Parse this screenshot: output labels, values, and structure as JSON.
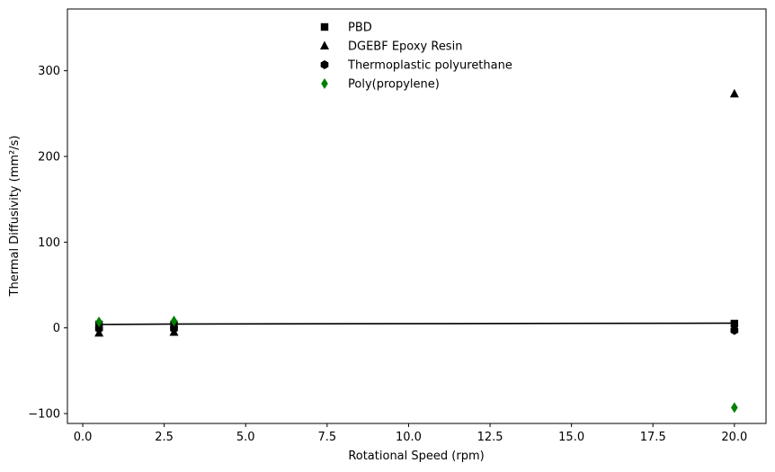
{
  "chart_data": {
    "type": "scatter",
    "title": "",
    "xlabel": "Rotational Speed (rpm)",
    "ylabel": "Thermal Diffusivity (mm²/s)",
    "xlim": [
      -0.47,
      20.97
    ],
    "ylim": [
      -111.5,
      372
    ],
    "x_ticks": [
      0.0,
      2.5,
      5.0,
      7.5,
      10.0,
      12.5,
      15.0,
      17.5,
      20.0
    ],
    "x_tick_labels": [
      "0.0",
      "2.5",
      "5.0",
      "7.5",
      "10.0",
      "12.5",
      "15.0",
      "17.5",
      "20.0"
    ],
    "y_ticks": [
      -100,
      0,
      100,
      200,
      300
    ],
    "y_tick_labels": [
      "−100",
      "0",
      "100",
      "200",
      "300"
    ],
    "grid": false,
    "legend_position": "top-center",
    "series": [
      {
        "name": "PBD",
        "marker": "square",
        "color": "#000000",
        "x": [
          0.5,
          2.8,
          20.0
        ],
        "y": [
          4,
          4,
          5
        ]
      },
      {
        "name": "DGEBF Epoxy Resin",
        "marker": "triangle",
        "color": "#000000",
        "x": [
          0.5,
          2.8,
          20.0
        ],
        "y": [
          -6,
          -5,
          273
        ]
      },
      {
        "name": "Thermoplastic polyurethane",
        "marker": "hexagon",
        "color": "#000000",
        "x": [
          0.5,
          2.8,
          20.0
        ],
        "y": [
          -1,
          -1,
          -3
        ]
      },
      {
        "name": "Poly(propylene)",
        "marker": "diamond",
        "color": "#008000",
        "x": [
          0.5,
          2.8,
          20.0
        ],
        "y": [
          7,
          8,
          -93
        ]
      }
    ],
    "fit_line": {
      "color": "#000000",
      "x": [
        0.5,
        2.8,
        20.0
      ],
      "y": [
        4,
        4.5,
        5.5
      ]
    }
  }
}
